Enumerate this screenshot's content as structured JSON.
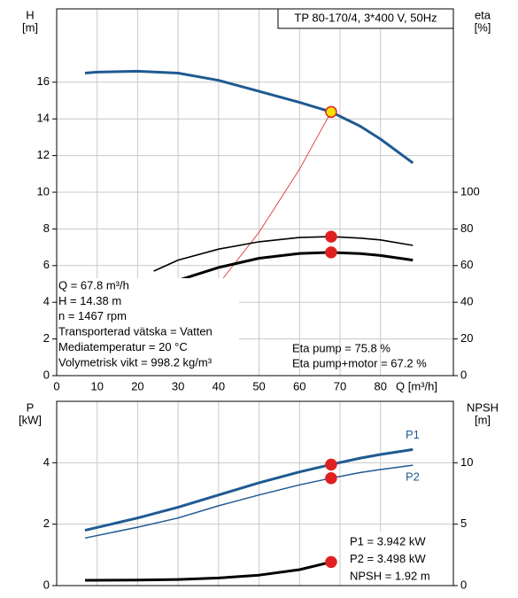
{
  "chart_data": [
    {
      "type": "line",
      "title": "TP 80-170/4, 3*400 V, 50Hz",
      "ylabel": "H",
      "yunit": "[m]",
      "y2label": "eta",
      "y2unit": "[%]",
      "xlabel": "Q [m³/h]",
      "xlim": [
        0,
        98
      ],
      "xticks": [
        0,
        10,
        20,
        30,
        40,
        50,
        60,
        70,
        80
      ],
      "ylim": [
        0,
        20
      ],
      "yticks": [
        0,
        2,
        4,
        6,
        8,
        10,
        12,
        14,
        16
      ],
      "y2lim": [
        0,
        200
      ],
      "y2ticks": [
        0,
        20,
        40,
        60,
        80,
        100
      ],
      "grid": true,
      "info": [
        "Q = 67.8 m³/h",
        "H = 14.38 m",
        "n = 1467 rpm",
        "Transporterad vätska = Vatten",
        "Mediatemperatur = 20 °C",
        "Volymetrisk vikt = 998.2 kg/m³"
      ],
      "annotations": [
        "Eta pump = 75.8 %",
        "Eta pump+motor = 67.2 %"
      ],
      "series": [
        {
          "color": "#e02020",
          "width": 0.8,
          "x": [
            40.5,
            50,
            60,
            67.8
          ],
          "values": [
            5.13,
            7.82,
            11.26,
            14.38
          ]
        },
        {
          "color": "#1f5a92",
          "width": 3,
          "x": [
            7,
            10,
            20,
            30,
            40,
            50,
            60,
            67.8,
            75,
            80,
            88
          ],
          "values": [
            16.5,
            16.55,
            16.6,
            16.5,
            16.1,
            15.5,
            14.9,
            14.38,
            13.6,
            12.9,
            11.6
          ],
          "marker": {
            "x": 67.8,
            "y": 14.38,
            "fill": "#f5e200",
            "stroke": "#e02020"
          }
        },
        {
          "color": "#000000",
          "width": 1.6,
          "axis": "y2",
          "x": [
            24,
            30,
            40,
            50,
            60,
            67.8,
            75,
            80,
            88
          ],
          "values": [
            57,
            63,
            69,
            73,
            75.3,
            75.8,
            75,
            74,
            71
          ],
          "marker": {
            "x": 67.8,
            "y": 75.8,
            "fill": "#e02020",
            "stroke": "#e02020"
          }
        },
        {
          "color": "#000000",
          "width": 3,
          "axis": "y2",
          "x": [
            30,
            40,
            50,
            60,
            67.8,
            75,
            80,
            88
          ],
          "values": [
            52,
            59,
            64,
            66.6,
            67.2,
            66.5,
            65.5,
            63
          ],
          "marker": {
            "x": 67.8,
            "y": 67.2,
            "fill": "#e02020",
            "stroke": "#e02020"
          }
        }
      ]
    },
    {
      "type": "line",
      "ylabel": "P",
      "yunit": "[kW]",
      "y2label": "NPSH",
      "y2unit": "[m]",
      "xlim": [
        0,
        98
      ],
      "ylim": [
        0,
        6
      ],
      "yticks": [
        0,
        2,
        4
      ],
      "y2lim": [
        0,
        15
      ],
      "y2ticks": [
        0,
        5,
        10
      ],
      "grid": true,
      "annotations": [
        "P1 = 3.942 kW",
        "P2 = 3.498 kW",
        "NPSH = 1.92 m"
      ],
      "series": [
        {
          "name": "P1",
          "color": "#1f5a92",
          "width": 3,
          "x": [
            7,
            20,
            30,
            40,
            50,
            60,
            67.8,
            75,
            80,
            88
          ],
          "values": [
            1.8,
            2.2,
            2.55,
            2.95,
            3.35,
            3.7,
            3.942,
            4.15,
            4.27,
            4.43
          ],
          "marker": {
            "x": 67.8,
            "y": 3.942,
            "fill": "#e02020",
            "stroke": "#e02020"
          }
        },
        {
          "name": "P2",
          "color": "#1f5a92",
          "width": 1.5,
          "x": [
            7,
            20,
            30,
            40,
            50,
            60,
            67.8,
            75,
            80,
            88
          ],
          "values": [
            1.55,
            1.9,
            2.2,
            2.6,
            2.95,
            3.28,
            3.498,
            3.68,
            3.78,
            3.92
          ],
          "marker": {
            "x": 67.8,
            "y": 3.498,
            "fill": "#e02020",
            "stroke": "#e02020"
          }
        },
        {
          "color": "#000000",
          "width": 3,
          "axis": "y2",
          "x": [
            7,
            20,
            30,
            40,
            50,
            60,
            67.8
          ],
          "values": [
            0.43,
            0.45,
            0.5,
            0.62,
            0.85,
            1.3,
            1.92
          ],
          "marker": {
            "x": 67.8,
            "y": 1.92,
            "fill": "#e02020",
            "stroke": "#e02020"
          }
        }
      ]
    }
  ]
}
